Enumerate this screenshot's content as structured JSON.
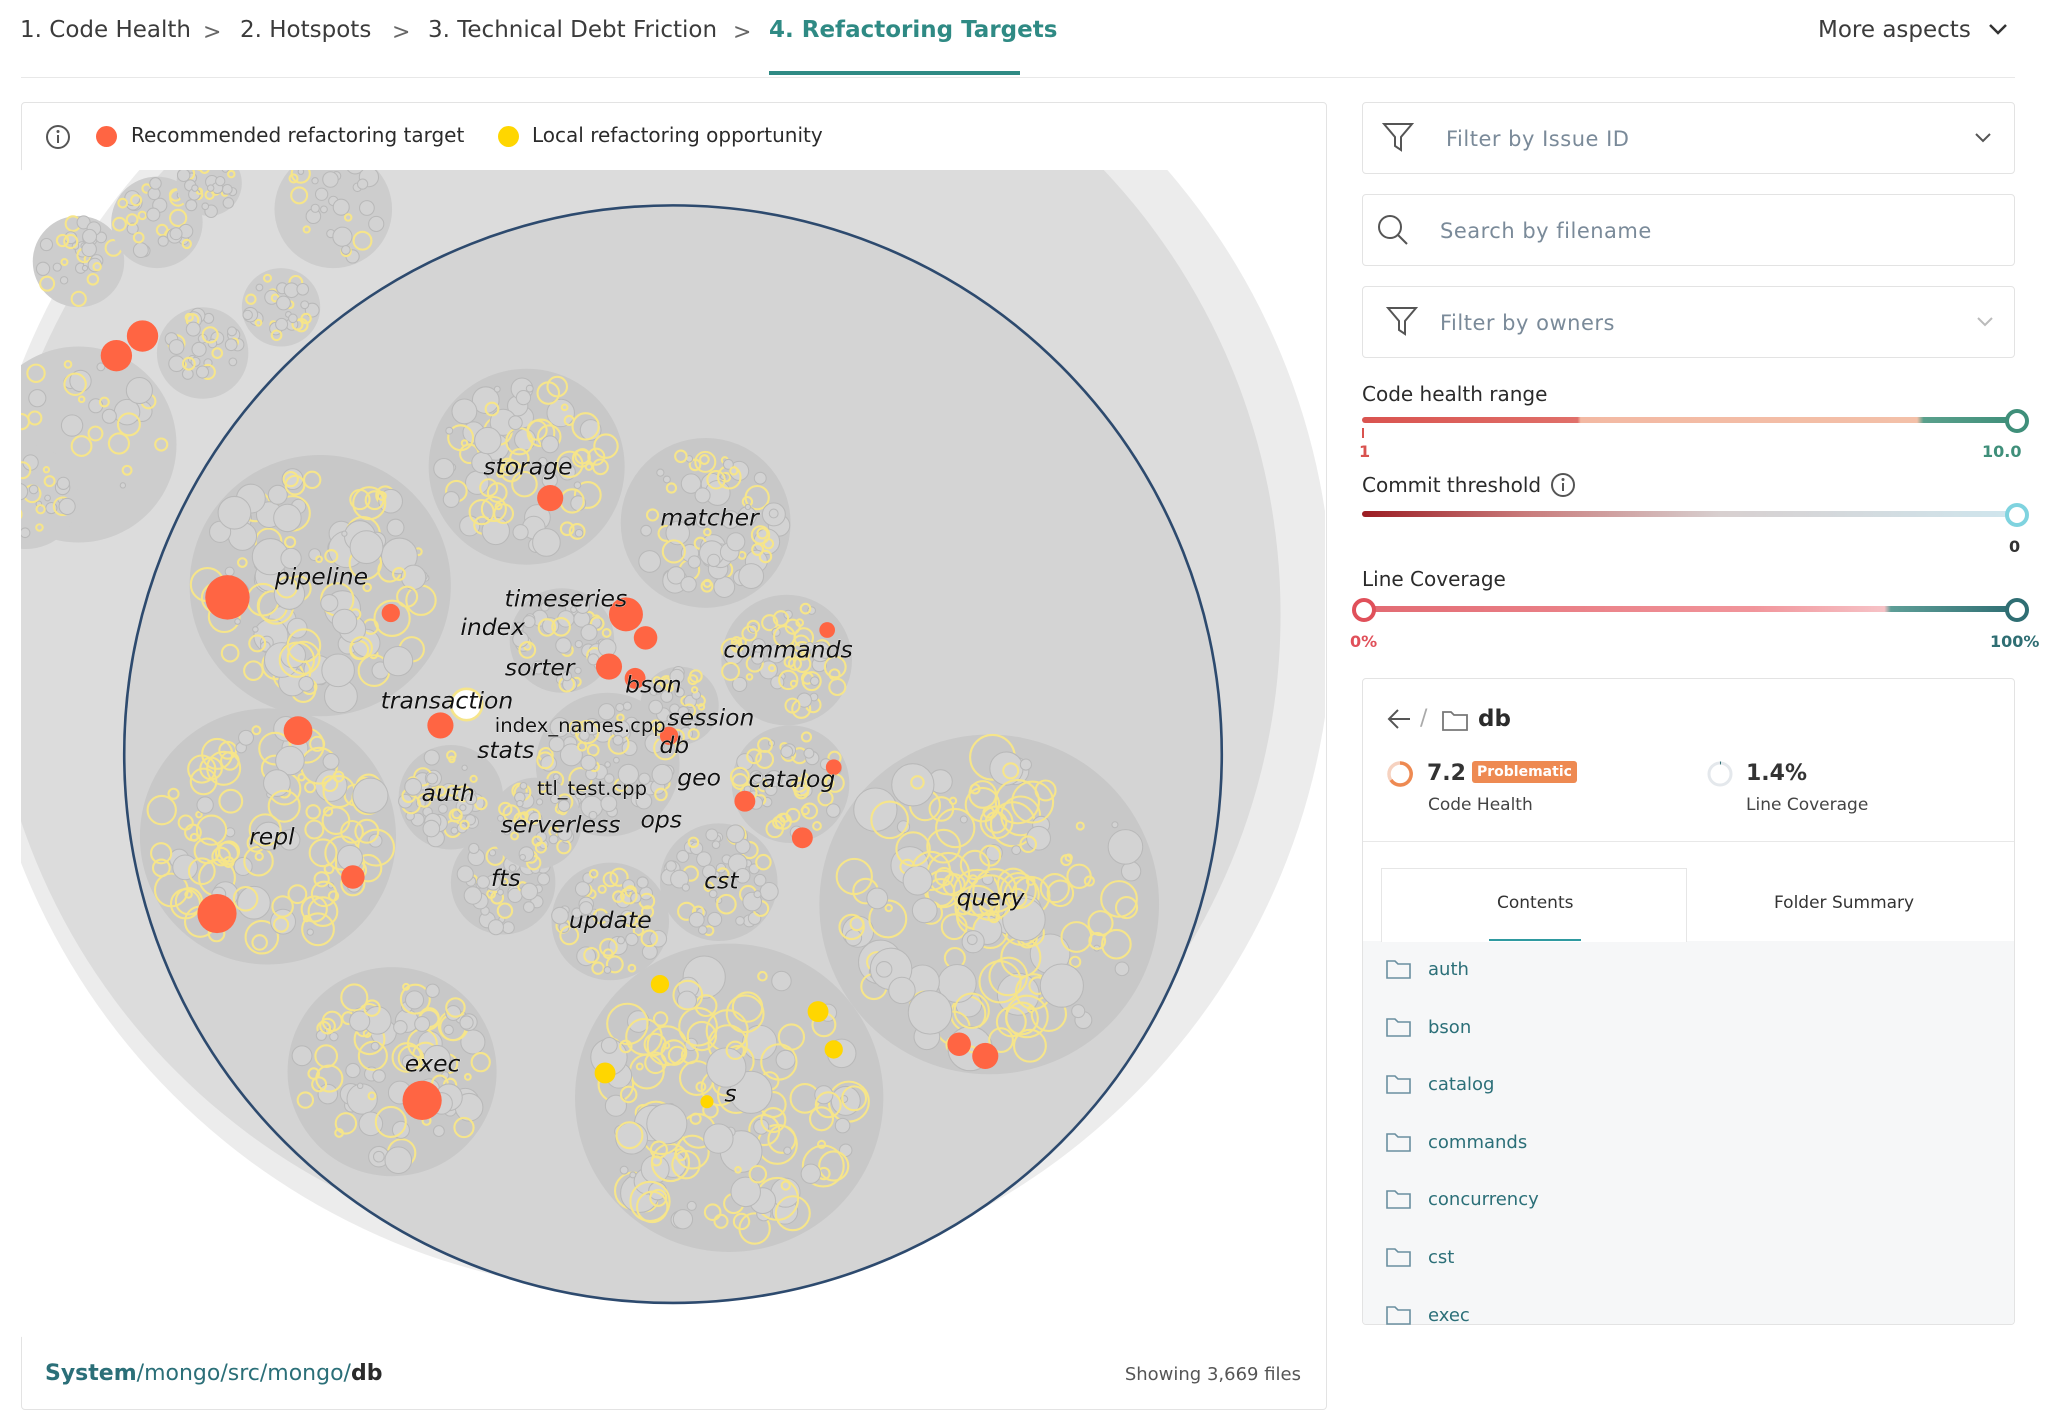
{
  "tabs": [
    "1. Code Health",
    "2. Hotspots",
    "3. Technical Debt Friction",
    "4. Refactoring Targets"
  ],
  "more_aspects": "More aspects",
  "legend": [
    "Recommended refactoring target",
    "Local refactoring opportunity"
  ],
  "filters": {
    "issue": "Filter by Issue ID",
    "filename": "Search by filename",
    "owners": "Filter by owners"
  },
  "sliders": {
    "code_health": {
      "label": "Code health range",
      "min": "1",
      "max": "10.0"
    },
    "commit": {
      "label": "Commit threshold",
      "value": "0"
    },
    "coverage": {
      "label": "Line Coverage",
      "min": "0%",
      "max": "100%"
    }
  },
  "folder": {
    "name": "db",
    "code_health": "7.2",
    "badge": "Problematic",
    "code_health_label": "Code Health",
    "coverage": "1.4%",
    "coverage_label": "Line Coverage",
    "tabs": [
      "Contents",
      "Folder Summary"
    ],
    "contents": [
      "auth",
      "bson",
      "catalog",
      "commands",
      "concurrency",
      "cst",
      "exec"
    ]
  },
  "breadcrumb": [
    "System",
    "/mongo/src/mongo/",
    "db"
  ],
  "file_count": "Showing 3,669 files",
  "map_labels": [
    "storage",
    "matcher",
    "pipeline",
    "timeseries",
    "index",
    "commands",
    "sorter",
    "bson",
    "transaction",
    "session",
    "index_names.cpp",
    "db",
    "stats",
    "geo",
    "catalog",
    "auth",
    "ttl_test.cpp",
    "serverless",
    "ops",
    "repl",
    "fts",
    "cst",
    "update",
    "query",
    "exec",
    "s"
  ]
}
